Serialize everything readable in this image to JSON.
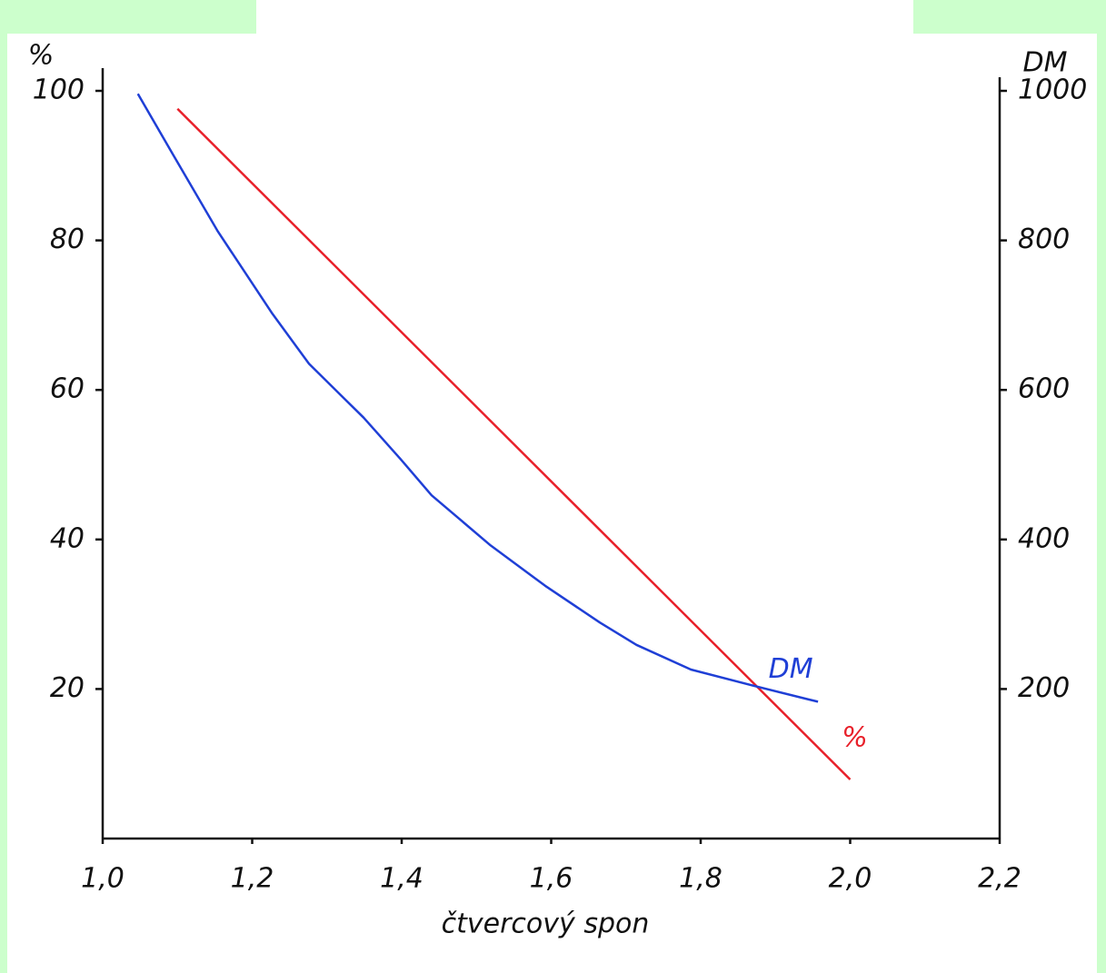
{
  "chart_data": {
    "type": "line",
    "x_label": "čtvercový spon",
    "y_label": "%",
    "y2_label": "DM",
    "xlim": [
      1.0,
      2.2
    ],
    "xticks": [
      {
        "value": 1.0,
        "label": "1,0"
      },
      {
        "value": 1.2,
        "label": "1,2"
      },
      {
        "value": 1.4,
        "label": "1,4"
      },
      {
        "value": 1.6,
        "label": "1,6"
      },
      {
        "value": 1.8,
        "label": "1,8"
      },
      {
        "value": 2.0,
        "label": "2,0"
      },
      {
        "value": 2.2,
        "label": "2,2"
      }
    ],
    "ylim": [
      0,
      100
    ],
    "yticks": [
      20,
      40,
      60,
      80,
      100
    ],
    "y2lim": [
      0,
      1000
    ],
    "y2ticks": [
      200,
      400,
      600,
      800,
      1000
    ],
    "series": [
      {
        "name": "%",
        "color": "#e8202a",
        "x": [
          1.1,
          2.0
        ],
        "values": [
          97.6,
          7.9
        ]
      },
      {
        "name": "DM",
        "color": "#1f3fd6",
        "axis": "y2",
        "x": [
          1.047,
          1.094,
          1.154,
          1.227,
          1.276,
          1.349,
          1.398,
          1.44,
          1.519,
          1.592,
          1.665,
          1.714,
          1.787,
          1.872,
          1.957
        ],
        "values": [
          996,
          915,
          812,
          702,
          635,
          563,
          508,
          459,
          392,
          338,
          289,
          259,
          226,
          204,
          183
        ]
      }
    ]
  }
}
